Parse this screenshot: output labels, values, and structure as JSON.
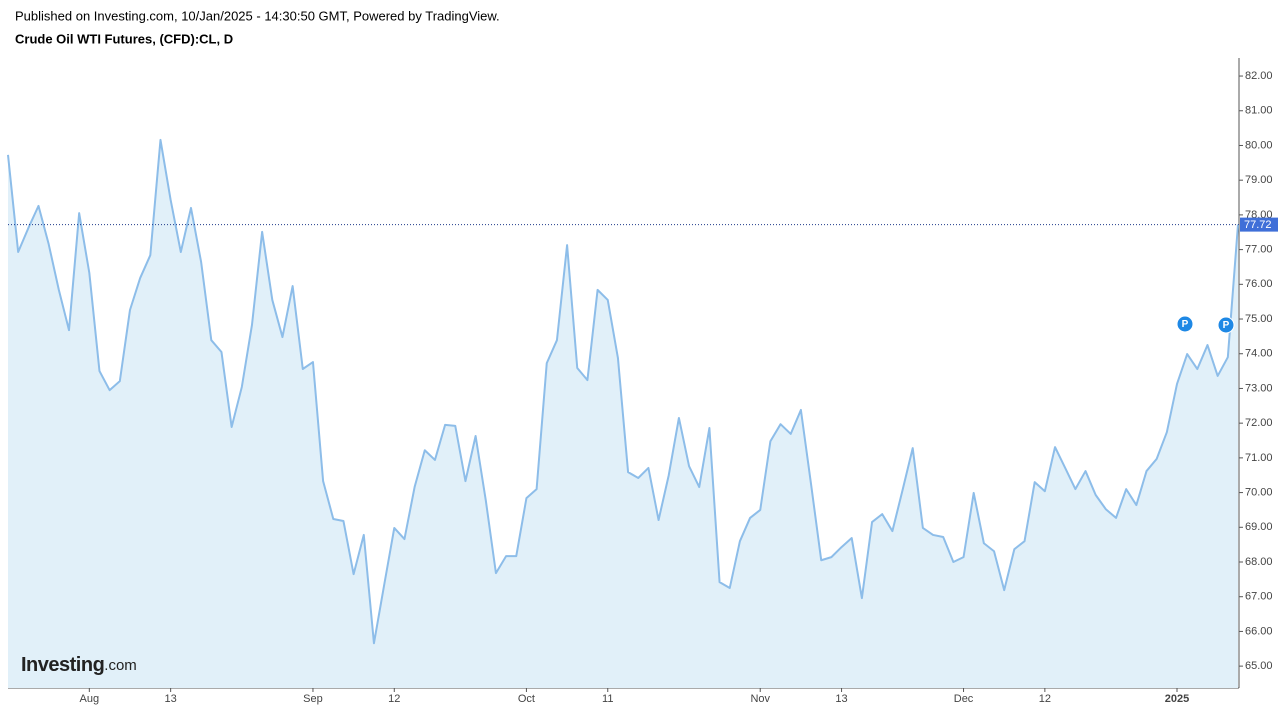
{
  "header": {
    "published": "Published on Investing.com, 10/Jan/2025 - 14:30:50 GMT, Powered by TradingView."
  },
  "chart_data": {
    "type": "area",
    "title": "Crude Oil WTI Futures, (CFD):CL, D",
    "watermark": {
      "brand": "Investing",
      "suffix": ".com"
    },
    "event_markers": [
      "P",
      "P"
    ],
    "categories": [
      null,
      null,
      null,
      null,
      null,
      null,
      null,
      null,
      "Aug",
      null,
      null,
      null,
      null,
      null,
      null,
      null,
      "13",
      null,
      null,
      null,
      null,
      null,
      null,
      null,
      null,
      null,
      null,
      null,
      null,
      null,
      "Sep",
      null,
      null,
      null,
      null,
      null,
      null,
      null,
      "12",
      null,
      null,
      null,
      null,
      null,
      null,
      null,
      null,
      null,
      null,
      null,
      null,
      "Oct",
      null,
      null,
      null,
      null,
      null,
      null,
      null,
      "11",
      null,
      null,
      null,
      null,
      null,
      null,
      null,
      null,
      null,
      null,
      null,
      null,
      null,
      null,
      "Nov",
      null,
      null,
      null,
      null,
      null,
      null,
      null,
      "13",
      null,
      null,
      null,
      null,
      null,
      null,
      null,
      null,
      null,
      null,
      null,
      "Dec",
      null,
      null,
      null,
      null,
      null,
      null,
      null,
      "12",
      null,
      null,
      null,
      null,
      null,
      null,
      null,
      null,
      null,
      null,
      null,
      null,
      "2025",
      null,
      null,
      null,
      null,
      null,
      null
    ],
    "values": [
      79.73,
      76.93,
      77.62,
      78.26,
      77.16,
      75.84,
      74.68,
      78.05,
      76.33,
      73.5,
      72.95,
      73.21,
      75.26,
      76.18,
      76.84,
      80.16,
      78.43,
      76.93,
      78.2,
      76.64,
      74.39,
      74.05,
      71.89,
      73.04,
      74.83,
      77.51,
      75.55,
      74.48,
      75.95,
      73.56,
      73.76,
      70.33,
      69.24,
      69.18,
      67.65,
      68.78,
      65.66,
      67.33,
      68.98,
      68.66,
      70.16,
      71.22,
      70.94,
      71.95,
      71.92,
      70.33,
      71.63,
      69.78,
      67.68,
      68.17,
      68.17,
      69.84,
      70.1,
      73.73,
      74.39,
      77.13,
      73.59,
      73.24,
      75.84,
      75.55,
      73.88,
      70.59,
      70.42,
      70.71,
      69.21,
      70.5,
      72.15,
      70.76,
      70.16,
      71.86,
      67.42,
      67.25,
      68.6,
      69.27,
      69.5,
      71.48,
      71.97,
      71.69,
      72.38,
      70.24,
      68.05,
      68.14,
      68.43,
      68.69,
      66.96,
      69.15,
      69.38,
      68.89,
      70.07,
      71.28,
      68.98,
      68.78,
      68.72,
      68.0,
      68.14,
      69.99,
      68.54,
      68.31,
      67.19,
      68.37,
      68.6,
      70.3,
      70.04,
      71.31,
      70.71,
      70.1,
      70.62,
      69.93,
      69.52,
      69.27,
      70.1,
      69.64,
      70.62,
      70.97,
      71.74,
      73.13,
      73.99,
      73.56,
      74.25,
      73.36,
      73.9,
      77.72
    ],
    "line_color": "#8dbde9",
    "fill_color": "#e1f0f9",
    "last_price_color": "#3f6fd8",
    "ylim": [
      64.37,
      82.52
    ],
    "yticks": [
      {
        "value": 65,
        "label": "65.00"
      },
      {
        "value": 66,
        "label": "66.00"
      },
      {
        "value": 67,
        "label": "67.00"
      },
      {
        "value": 68,
        "label": "68.00"
      },
      {
        "value": 69,
        "label": "69.00"
      },
      {
        "value": 70,
        "label": "70.00"
      },
      {
        "value": 71,
        "label": "71.00"
      },
      {
        "value": 72,
        "label": "72.00"
      },
      {
        "value": 73,
        "label": "73.00"
      },
      {
        "value": 74,
        "label": "74.00"
      },
      {
        "value": 75,
        "label": "75.00"
      },
      {
        "value": 76,
        "label": "76.00"
      },
      {
        "value": 77,
        "label": "77.00"
      },
      {
        "value": 78,
        "label": "78.00"
      },
      {
        "value": 79,
        "label": "79.00"
      },
      {
        "value": 80,
        "label": "80.00"
      },
      {
        "value": 81,
        "label": "81.00"
      },
      {
        "value": 82,
        "label": "82.00"
      }
    ],
    "y_axis_side": "right",
    "grid": false
  }
}
